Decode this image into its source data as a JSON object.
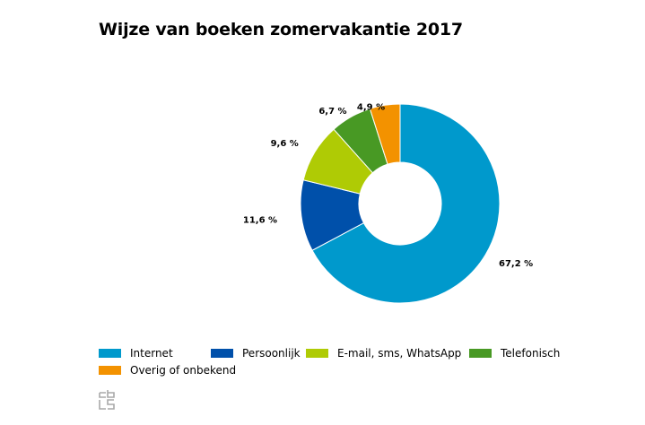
{
  "title": "Wijze van boeken zomervakantie 2017",
  "chart_data": {
    "type": "pie",
    "variant": "donut",
    "title": "Wijze van boeken zomervakantie 2017",
    "categories": [
      "Internet",
      "Persoonlijk",
      "E-mail, sms, WhatsApp",
      "Telefonisch",
      "Overig of onbekend"
    ],
    "values": [
      67.2,
      11.6,
      9.6,
      6.7,
      4.9
    ],
    "data_labels": [
      "67,2 %",
      "11,6 %",
      "9,6 %",
      "6,7 %",
      "4,9 %"
    ],
    "colors": [
      "#0099cc",
      "#0050aa",
      "#afcb05",
      "#489924",
      "#f39200"
    ],
    "legend_position": "bottom"
  },
  "legend": {
    "items": [
      {
        "label": "Internet",
        "color": "#0099cc"
      },
      {
        "label": "Persoonlijk",
        "color": "#0050aa"
      },
      {
        "label": "E-mail, sms, WhatsApp",
        "color": "#afcb05"
      },
      {
        "label": "Telefonisch",
        "color": "#489924"
      },
      {
        "label": "Overig of onbekend",
        "color": "#f39200"
      }
    ]
  },
  "logo_icon": "cbs-logo-icon"
}
